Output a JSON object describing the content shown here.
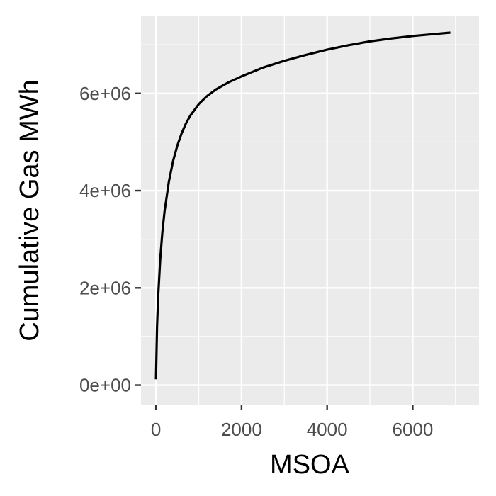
{
  "chart_data": {
    "type": "line",
    "title": "",
    "xlabel": "MSOA",
    "ylabel": "Cumulative Gas MWh",
    "xlim": [
      -350,
      7550
    ],
    "ylim": [
      -400000,
      7600000
    ],
    "x_ticks": [
      0,
      2000,
      4000,
      6000
    ],
    "x_tick_labels": [
      "0",
      "2000",
      "4000",
      "6000"
    ],
    "x_minor": [
      1000,
      3000,
      5000,
      7000
    ],
    "y_ticks": [
      0,
      2000000,
      4000000,
      6000000
    ],
    "y_tick_labels": [
      "0e+00",
      "2e+06",
      "4e+06",
      "6e+06"
    ],
    "y_minor": [
      1000000,
      3000000,
      5000000,
      7000000
    ],
    "grid": true,
    "legend": "none",
    "series": [
      {
        "name": "Cumulative Gas MWh",
        "color": "#000000",
        "x": [
          0,
          25,
          50,
          100,
          150,
          200,
          300,
          400,
          500,
          600,
          700,
          800,
          1000,
          1200,
          1400,
          1700,
          2000,
          2500,
          3000,
          3500,
          4000,
          4500,
          5000,
          5500,
          6000,
          6500,
          6880
        ],
        "y": [
          120000,
          1200000,
          1800000,
          2600000,
          3150000,
          3570000,
          4180000,
          4610000,
          4930000,
          5180000,
          5380000,
          5540000,
          5780000,
          5950000,
          6080000,
          6230000,
          6350000,
          6530000,
          6670000,
          6790000,
          6900000,
          6990000,
          7070000,
          7130000,
          7180000,
          7220000,
          7250000
        ]
      }
    ]
  },
  "colors": {
    "panel_background": "#ebebeb",
    "grid": "#ffffff",
    "tick": "#333333",
    "line": "#000000"
  }
}
